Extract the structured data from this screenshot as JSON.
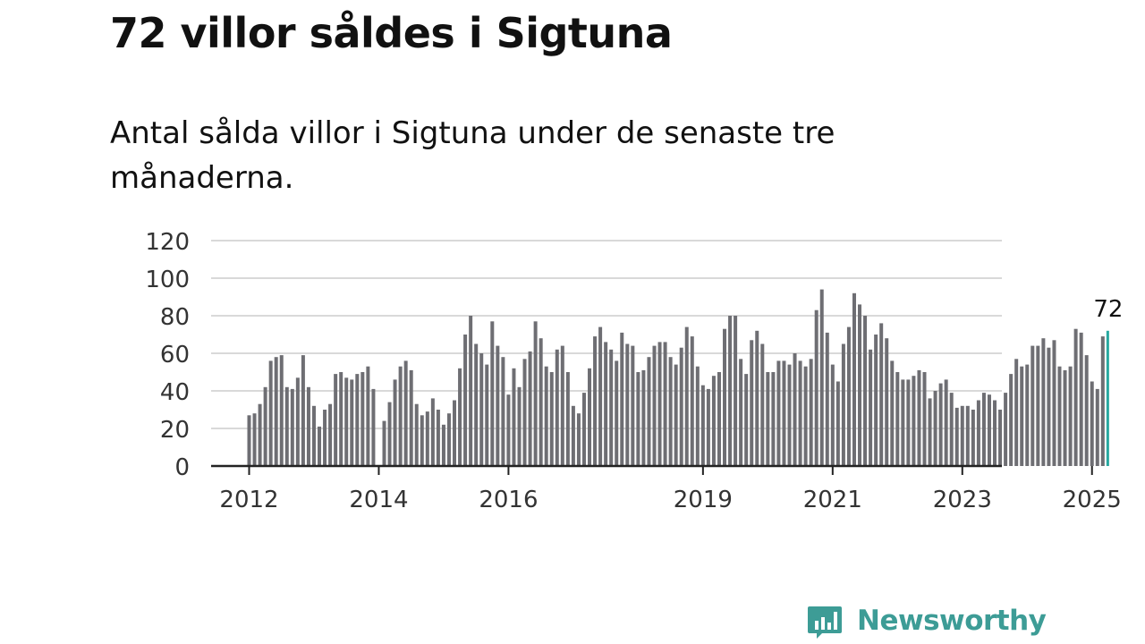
{
  "title": "72 villor såldes i Sigtuna",
  "subtitle": "Antal sålda villor i Sigtuna under de senaste tre månaderna.",
  "brand": {
    "name": "Newsworthy",
    "color": "#3d9c96",
    "icon": "newsworthy-logo-icon"
  },
  "chart_data": {
    "type": "bar",
    "title": "72 villor såldes i Sigtuna",
    "subtitle": "Antal sålda villor i Sigtuna under de senaste tre månaderna.",
    "xlabel": "",
    "ylabel": "",
    "ylim": [
      0,
      120
    ],
    "yticks": [
      0,
      20,
      40,
      60,
      80,
      100,
      120
    ],
    "xticks": [
      {
        "label": "2012",
        "index": 0
      },
      {
        "label": "2014",
        "index": 24
      },
      {
        "label": "2016",
        "index": 48
      },
      {
        "label": "2019",
        "index": 84
      },
      {
        "label": "2021",
        "index": 108
      },
      {
        "label": "2023",
        "index": 132
      },
      {
        "label": "2025",
        "index": 156
      }
    ],
    "grid": true,
    "bar_color": "#6e6e73",
    "highlight_color": "#27a8a0",
    "highlight_label": "72",
    "start": "2012-01",
    "frequency": "monthly",
    "values": [
      27,
      28,
      33,
      42,
      56,
      58,
      59,
      42,
      41,
      47,
      59,
      42,
      32,
      21,
      30,
      33,
      49,
      50,
      47,
      46,
      49,
      50,
      53,
      41,
      null,
      24,
      34,
      46,
      53,
      56,
      51,
      33,
      27,
      29,
      36,
      30,
      22,
      28,
      35,
      52,
      70,
      80,
      65,
      60,
      54,
      77,
      64,
      58,
      38,
      52,
      42,
      57,
      61,
      77,
      68,
      53,
      50,
      62,
      64,
      50,
      32,
      28,
      39,
      52,
      69,
      74,
      66,
      62,
      56,
      71,
      65,
      64,
      50,
      51,
      58,
      64,
      66,
      66,
      58,
      54,
      63,
      74,
      69,
      53,
      43,
      41,
      48,
      50,
      73,
      80,
      80,
      57,
      49,
      67,
      72,
      65,
      50,
      50,
      56,
      56,
      54,
      60,
      56,
      53,
      57,
      83,
      94,
      71,
      54,
      45,
      65,
      74,
      92,
      86,
      80,
      62,
      70,
      76,
      68,
      56,
      50,
      46,
      46,
      48,
      51,
      50,
      36,
      40,
      44,
      46,
      39,
      31,
      32,
      32,
      30,
      35,
      39,
      38,
      35,
      30,
      39,
      49,
      57,
      53,
      54,
      64,
      64,
      68,
      63,
      67,
      53,
      51,
      53,
      73,
      71,
      59,
      45,
      41,
      69,
      72
    ]
  }
}
